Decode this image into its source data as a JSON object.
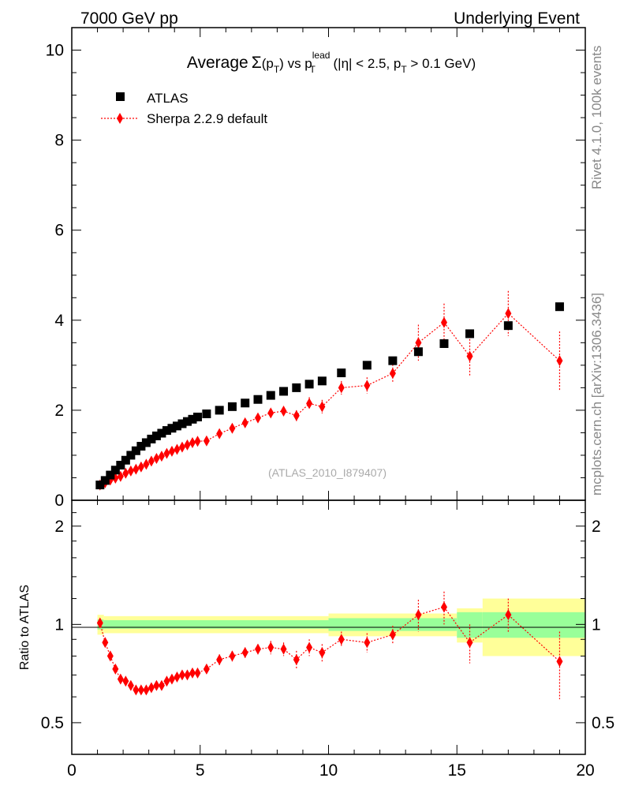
{
  "header": {
    "left": "7000 GeV pp",
    "right": "Underlying Event"
  },
  "side_text": {
    "rivet": "Rivet 4.1.0,  100k events",
    "url": "mcplots.cern.ch [arXiv:1306.3436]"
  },
  "chart_data": {
    "type": "scatter",
    "title": {
      "prefix": "Average",
      "sigma": "Σ",
      "pt": "(p",
      "t_sub": "T",
      "close": ")",
      "vs": " vs p",
      "lead": "lead",
      "cuts_a": " (|η| < 2.5, p",
      "cuts_b": " > 0.1 GeV)"
    },
    "watermark": "(ATLAS_2010_I879407)",
    "xlim": [
      0,
      20
    ],
    "ylim": [
      0,
      10.5
    ],
    "ratio_ylim": [
      0.4,
      2.4
    ],
    "ratio_ylabel": "Ratio to ATLAS",
    "x_ticks": [
      "0",
      "5",
      "10",
      "15",
      "20"
    ],
    "y_ticks": [
      "0",
      "2",
      "4",
      "6",
      "8",
      "10"
    ],
    "ratio_ticks_left": [
      "0.5",
      "1",
      "2"
    ],
    "ratio_ticks_right": [
      "0.5",
      "1",
      "2"
    ],
    "colors": {
      "atlas": "#000000",
      "sherpa": "#ff0000",
      "band_inner": "#99ff99",
      "band_outer": "#ffff99"
    },
    "series": [
      {
        "name": "ATLAS",
        "x": [
          1.1,
          1.3,
          1.5,
          1.7,
          1.9,
          2.1,
          2.3,
          2.5,
          2.7,
          2.9,
          3.1,
          3.3,
          3.5,
          3.7,
          3.9,
          4.1,
          4.3,
          4.5,
          4.7,
          4.9,
          5.25,
          5.75,
          6.25,
          6.75,
          7.25,
          7.75,
          8.25,
          8.75,
          9.25,
          9.75,
          10.5,
          11.5,
          12.5,
          13.5,
          14.5,
          15.5,
          17.0,
          19.0
        ],
        "y": [
          0.34,
          0.44,
          0.56,
          0.67,
          0.78,
          0.89,
          1.0,
          1.1,
          1.2,
          1.28,
          1.36,
          1.43,
          1.49,
          1.55,
          1.6,
          1.65,
          1.7,
          1.75,
          1.8,
          1.85,
          1.92,
          2.0,
          2.08,
          2.16,
          2.24,
          2.33,
          2.42,
          2.5,
          2.58,
          2.65,
          2.83,
          3.0,
          3.1,
          3.3,
          3.48,
          3.7,
          3.88,
          4.3
        ]
      },
      {
        "name": "Sherpa 2.2.9 default",
        "x": [
          1.1,
          1.3,
          1.5,
          1.7,
          1.9,
          2.1,
          2.3,
          2.5,
          2.7,
          2.9,
          3.1,
          3.3,
          3.5,
          3.7,
          3.9,
          4.1,
          4.3,
          4.5,
          4.7,
          4.9,
          5.25,
          5.75,
          6.25,
          6.75,
          7.25,
          7.75,
          8.25,
          8.75,
          9.25,
          9.75,
          10.5,
          11.5,
          12.5,
          13.5,
          14.5,
          15.5,
          17.0,
          19.0
        ],
        "y": [
          0.34,
          0.39,
          0.45,
          0.49,
          0.53,
          0.6,
          0.65,
          0.69,
          0.74,
          0.8,
          0.87,
          0.93,
          0.98,
          1.04,
          1.09,
          1.13,
          1.18,
          1.23,
          1.28,
          1.31,
          1.32,
          1.48,
          1.6,
          1.72,
          1.83,
          1.94,
          1.98,
          1.88,
          2.15,
          2.08,
          2.5,
          2.55,
          2.82,
          3.5,
          3.95,
          3.2,
          4.15,
          3.1
        ],
        "yerr": [
          0.03,
          0.03,
          0.03,
          0.03,
          0.03,
          0.03,
          0.03,
          0.03,
          0.03,
          0.03,
          0.03,
          0.03,
          0.03,
          0.03,
          0.04,
          0.04,
          0.04,
          0.04,
          0.05,
          0.05,
          0.05,
          0.06,
          0.07,
          0.08,
          0.08,
          0.1,
          0.1,
          0.12,
          0.14,
          0.15,
          0.15,
          0.18,
          0.2,
          0.4,
          0.42,
          0.45,
          0.5,
          0.65
        ],
        "ratio": [
          1.01,
          0.88,
          0.8,
          0.73,
          0.68,
          0.67,
          0.65,
          0.63,
          0.63,
          0.63,
          0.64,
          0.65,
          0.65,
          0.67,
          0.68,
          0.69,
          0.7,
          0.7,
          0.71,
          0.71,
          0.73,
          0.78,
          0.8,
          0.82,
          0.84,
          0.85,
          0.84,
          0.78,
          0.85,
          0.82,
          0.9,
          0.88,
          0.93,
          1.07,
          1.13,
          0.88,
          1.07,
          0.77
        ],
        "ratio_err": [
          0.02,
          0.02,
          0.02,
          0.02,
          0.02,
          0.02,
          0.02,
          0.02,
          0.02,
          0.02,
          0.02,
          0.02,
          0.02,
          0.02,
          0.02,
          0.02,
          0.02,
          0.02,
          0.02,
          0.02,
          0.02,
          0.03,
          0.03,
          0.03,
          0.03,
          0.04,
          0.04,
          0.05,
          0.05,
          0.05,
          0.05,
          0.06,
          0.06,
          0.12,
          0.13,
          0.12,
          0.13,
          0.18
        ]
      }
    ],
    "band": {
      "edges": [
        1.0,
        1.25,
        10.0,
        15.0,
        16.0,
        20.0
      ],
      "inner_half": [
        0.035,
        0.03,
        0.045,
        0.09,
        0.09
      ],
      "outer_half": [
        0.07,
        0.06,
        0.08,
        0.12,
        0.2
      ]
    }
  }
}
